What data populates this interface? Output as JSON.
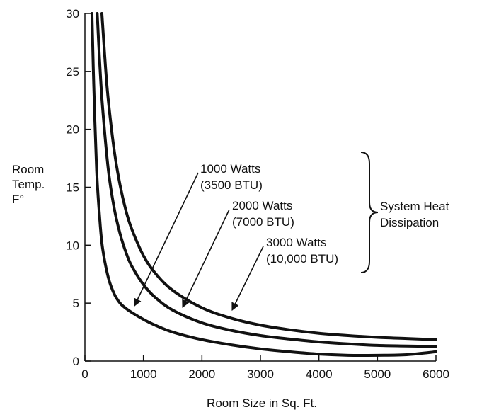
{
  "chart_data": {
    "type": "line",
    "title": "",
    "xlabel": "Room Size in Sq. Ft.",
    "ylabel": [
      "Room",
      "Temp.",
      "F°"
    ],
    "xlim": [
      0,
      6000
    ],
    "ylim": [
      0,
      30
    ],
    "xticks": [
      "0",
      "1000",
      "2000",
      "3000",
      "4000",
      "5000",
      "6000"
    ],
    "yticks": [
      "0",
      "5",
      "10",
      "15",
      "20",
      "25",
      "30"
    ],
    "grid": false,
    "legend": "none",
    "group_label": [
      "System Heat",
      "Dissipation"
    ],
    "series": [
      {
        "name_lines": [
          "1000 Watts",
          "(3500 BTU)"
        ],
        "x": [
          120,
          150,
          200,
          250,
          300,
          400,
          500,
          600,
          700,
          800,
          1000,
          1200,
          1500,
          2000,
          2500,
          3000,
          3500,
          4000,
          4500,
          5000,
          5500,
          6000
        ],
        "y": [
          30,
          24,
          16.5,
          12.5,
          9.8,
          7.2,
          5.8,
          5.0,
          4.55,
          4.2,
          3.6,
          3.1,
          2.5,
          1.85,
          1.4,
          1.05,
          0.8,
          0.6,
          0.5,
          0.5,
          0.55,
          0.8
        ]
      },
      {
        "name_lines": [
          "2000 Watts",
          "(7000 BTU)"
        ],
        "x": [
          210,
          250,
          300,
          400,
          500,
          600,
          700,
          800,
          1000,
          1200,
          1500,
          2000,
          2500,
          3000,
          3500,
          4000,
          4500,
          5000,
          5500,
          6000
        ],
        "y": [
          30,
          26,
          22,
          16.5,
          13.2,
          11,
          9.4,
          8.2,
          6.6,
          5.5,
          4.4,
          3.3,
          2.65,
          2.2,
          1.9,
          1.65,
          1.48,
          1.35,
          1.3,
          1.25
        ]
      },
      {
        "name_lines": [
          "3000 Watts",
          "(10,000 BTU)"
        ],
        "x": [
          290,
          350,
          400,
          500,
          600,
          700,
          800,
          1000,
          1200,
          1500,
          2000,
          2500,
          3000,
          3500,
          4000,
          4500,
          5000,
          5500,
          6000
        ],
        "y": [
          30,
          25.5,
          22.5,
          18.2,
          15.2,
          13,
          11.4,
          9.1,
          7.6,
          6.1,
          4.6,
          3.7,
          3.1,
          2.7,
          2.4,
          2.2,
          2.05,
          1.95,
          1.85
        ]
      }
    ]
  }
}
